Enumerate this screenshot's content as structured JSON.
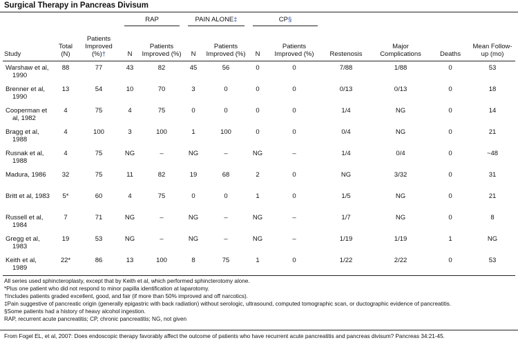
{
  "title": "Surgical Therapy in Pancreas Divisum",
  "table": {
    "groups": [
      {
        "label": "RAP",
        "start": 3
      },
      {
        "label": "PAIN ALONE",
        "mark": "‡",
        "start": 5
      },
      {
        "label": "CP",
        "mark": "§",
        "start": 7
      }
    ],
    "columns": [
      "Study",
      "Total (N)",
      "Patients Improved (%)",
      "N",
      "Patients Improved (%)",
      "N",
      "Patients Improved (%)",
      "N",
      "Patients Improved (%)",
      "Restenosis",
      "Major Complications",
      "Deaths",
      "Mean Follow-up (mo)"
    ],
    "improved_mark": "†",
    "rows": [
      [
        "Warshaw et al, 1990",
        "88",
        "77",
        "43",
        "82",
        "45",
        "56",
        "0",
        "0",
        "7/88",
        "1/88",
        "0",
        "53"
      ],
      [
        "Brenner et al, 1990",
        "13",
        "54",
        "10",
        "70",
        "3",
        "0",
        "0",
        "0",
        "0/13",
        "0/13",
        "0",
        "18"
      ],
      [
        "Cooperman et al, 1982",
        "4",
        "75",
        "4",
        "75",
        "0",
        "0",
        "0",
        "0",
        "1/4",
        "NG",
        "0",
        "14"
      ],
      [
        "Bragg et al, 1988",
        "4",
        "100",
        "3",
        "100",
        "1",
        "100",
        "0",
        "0",
        "0/4",
        "NG",
        "0",
        "21"
      ],
      [
        "Rusnak et al, 1988",
        "4",
        "75",
        "NG",
        "–",
        "NG",
        "–",
        "NG",
        "–",
        "1/4",
        "0/4",
        "0",
        "~48"
      ],
      [
        "Madura, 1986",
        "32",
        "75",
        "11",
        "82",
        "19",
        "68",
        "2",
        "0",
        "NG",
        "3/32",
        "0",
        "31"
      ],
      [
        "Britt et al, 1983",
        "5*",
        "60",
        "4",
        "75",
        "0",
        "0",
        "1",
        "0",
        "1/5",
        "NG",
        "0",
        "21"
      ],
      [
        "Russell et al, 1984",
        "7",
        "71",
        "NG",
        "–",
        "NG",
        "–",
        "NG",
        "–",
        "1/7",
        "NG",
        "0",
        "8"
      ],
      [
        "Gregg et al, 1983",
        "19",
        "53",
        "NG",
        "–",
        "NG",
        "–",
        "NG",
        "–",
        "1/19",
        "1/19",
        "1",
        "NG"
      ],
      [
        "Keith et al, 1989",
        "22*",
        "86",
        "13",
        "100",
        "8",
        "75",
        "1",
        "0",
        "1/22",
        "2/22",
        "0",
        "53"
      ]
    ]
  },
  "footnotes": [
    "All series used sphincteroplasty, except that by Keith et al, which performed sphincterotomy alone.",
    "*Plus one patient who did not respond to minor papilla identification at laparotomy.",
    "†Includes patients graded excellent, good, and fair (if more than 50% improved and off narcotics).",
    "‡Pain suggestive of pancreatic origin (generally epigastric with back radiation) without serologic, ultrasound, computed tomographic scan, or ductographic evidence of pancreatitis.",
    "§Some patients had a history of heavy alcohol ingestion.",
    "RAP, recurrent acute pancreatitis; CP, chronic pancreatitis; NG, not given"
  ],
  "source": "From Fogel EL, et al, 2007: Does endoscopic therapy favorably affect the outcome of patients who have recurrent acute pancreatitis and pancreas divisum? Pancreas 34:21-45."
}
